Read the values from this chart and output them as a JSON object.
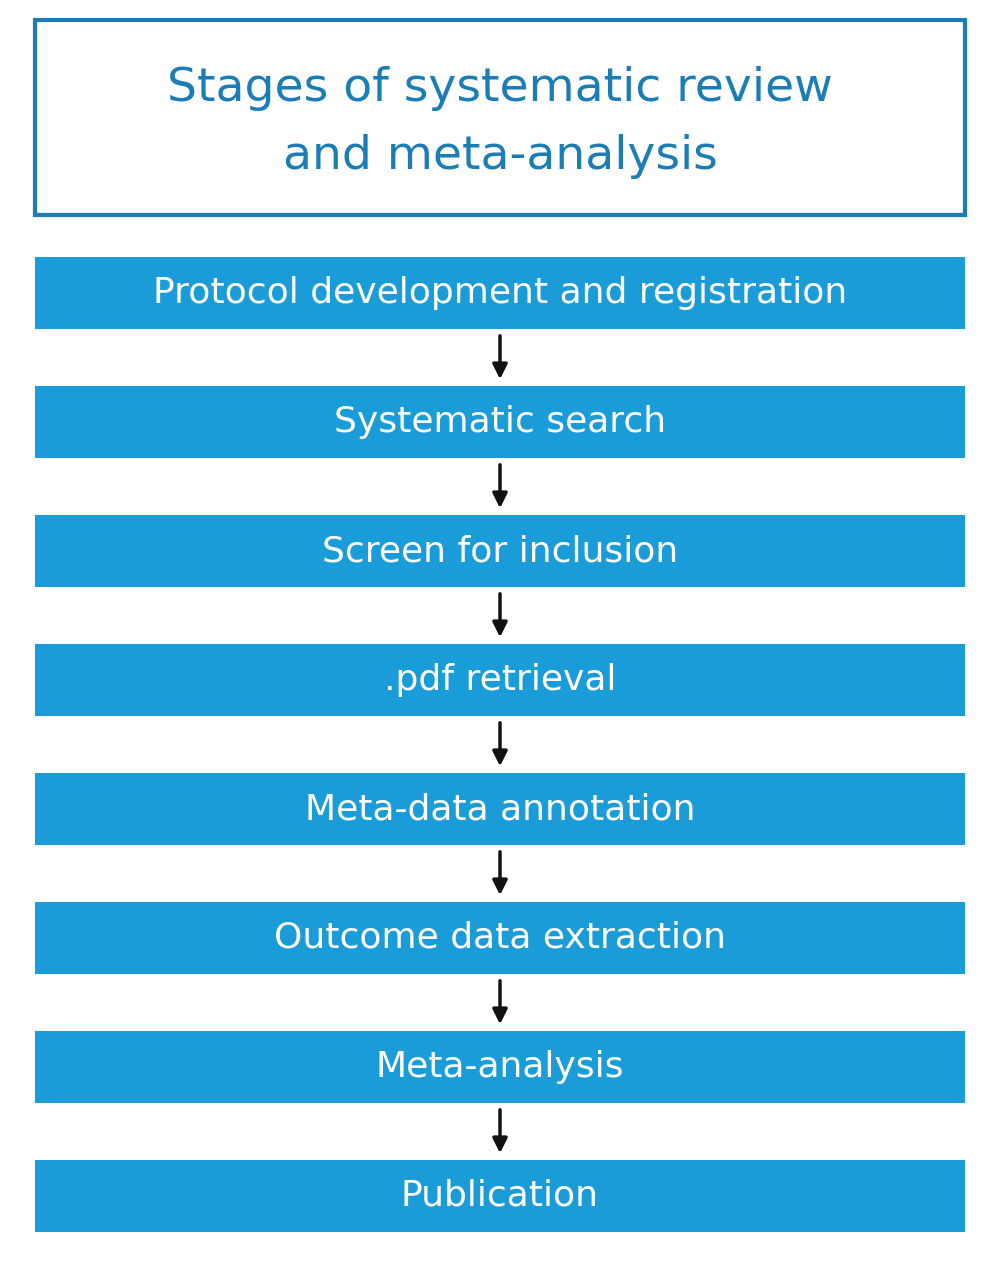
{
  "title_line1": "Stages of systematic review",
  "title_line2": "and meta-analysis",
  "title_text_color": "#1a7db5",
  "title_border_color": "#1a7db5",
  "title_bg_color": "#ffffff",
  "box_bg_color": "#1a9cd8",
  "box_text_color": "#ffffff",
  "bg_color": "#ffffff",
  "arrow_color": "#111111",
  "steps": [
    "Protocol development and registration",
    "Systematic search",
    "Screen for inclusion",
    ".pdf retrieval",
    "Meta-data annotation",
    "Outcome data extraction",
    "Meta-analysis",
    "Publication"
  ],
  "title_fontsize": 34,
  "step_fontsize": 26,
  "fig_width": 10.0,
  "fig_height": 12.72,
  "dpi": 100
}
